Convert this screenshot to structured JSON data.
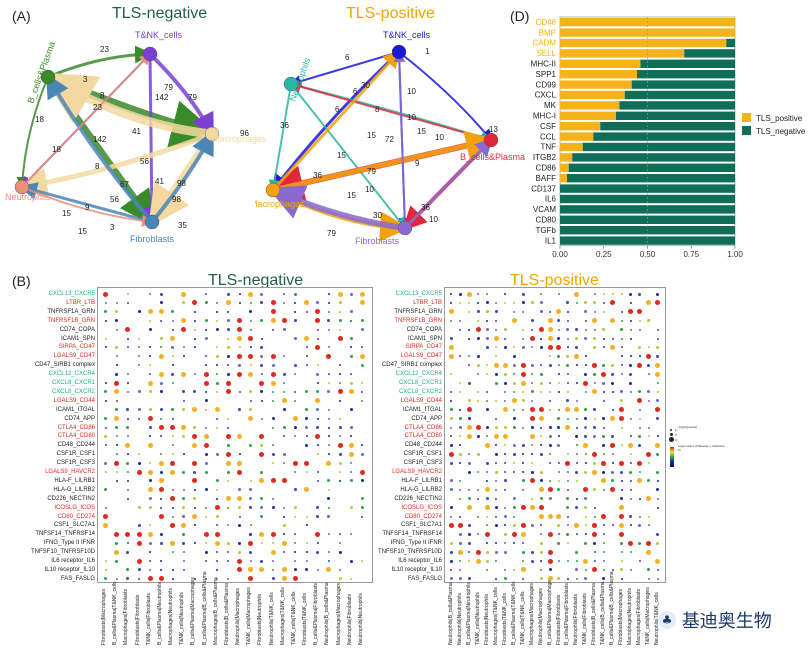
{
  "panels": {
    "a": {
      "letter": "(A)",
      "neg_title": "TLS-negative",
      "pos_title": "TLS-positive"
    },
    "b": {
      "letter": "(B)",
      "neg_title": "TLS-negative",
      "pos_title": "TLS-positive"
    },
    "d": {
      "letter": "(D)"
    }
  },
  "colors": {
    "neg_title": "#1f5f4a",
    "pos_title": "#f0a500",
    "tls_positive": "#f6b21a",
    "tls_negative": "#0f6e57",
    "lig_green": "#1fb37a",
    "lig_red": "#e0281e",
    "lig_black": "#222222"
  },
  "network_neg": {
    "nodes": [
      {
        "name": "T&NK_cells",
        "color": "#7b3fd1"
      },
      {
        "name": "B_cells&Plasma",
        "color": "#3a8a2a"
      },
      {
        "name": "Macrophages",
        "color": "#f3d9a0"
      },
      {
        "name": "Neutrophils",
        "color": "#e8907a"
      },
      {
        "name": "Fibroblasts",
        "color": "#4a86b8"
      }
    ],
    "edge_labels": [
      "23",
      "3",
      "79",
      "23",
      "8",
      "142",
      "79",
      "18",
      "142",
      "41",
      "96",
      "18",
      "56",
      "8",
      "67",
      "41",
      "98",
      "56",
      "9",
      "3",
      "15",
      "98",
      "15",
      "35"
    ]
  },
  "network_pos": {
    "nodes": [
      {
        "name": "T&NK_cells",
        "color": "#1a1ad6"
      },
      {
        "name": "Neutrophils",
        "color": "#2bb5a5"
      },
      {
        "name": "B_cells&Plasma",
        "color": "#e0283c"
      },
      {
        "name": "Macrophages",
        "color": "#f2a20f"
      },
      {
        "name": "Fibroblasts",
        "color": "#8a6ad0"
      }
    ],
    "edge_labels": [
      "6",
      "1",
      "6",
      "30",
      "6",
      "10",
      "36",
      "8",
      "15",
      "10",
      "13",
      "72",
      "79",
      "15",
      "9",
      "36",
      "10",
      "15",
      "79",
      "30",
      "36",
      "10",
      "10",
      "15"
    ]
  },
  "dot_rows_neg": [
    {
      "label": "CXCL13_CXCR5",
      "c": "green"
    },
    {
      "label": "LTBR_LTB",
      "c": "red"
    },
    {
      "label": "TNFRSF1A_GRN",
      "c": "black"
    },
    {
      "label": "TNFRSF1B_GRN",
      "c": "red"
    },
    {
      "label": "CD74_COPA",
      "c": "black"
    },
    {
      "label": "ICAM1_SPN",
      "c": "black"
    },
    {
      "label": "SIRPA_CD47",
      "c": "red"
    },
    {
      "label": "LGALS9_CD47",
      "c": "red"
    },
    {
      "label": "CD47_SIRB1 complex",
      "c": "black"
    },
    {
      "label": "CXCL12_CXCR4",
      "c": "green"
    },
    {
      "label": "CXCL8_CXCR1",
      "c": "green"
    },
    {
      "label": "CXCL8_CXCR2",
      "c": "green"
    },
    {
      "label": "LGALS9_CD44",
      "c": "red"
    },
    {
      "label": "ICAM1_ITGAL",
      "c": "black"
    },
    {
      "label": "CD74_APP",
      "c": "black"
    },
    {
      "label": "CTLA4_CD86",
      "c": "red"
    },
    {
      "label": "CTLA4_CD80",
      "c": "red"
    },
    {
      "label": "CD48_CD244",
      "c": "black"
    },
    {
      "label": "CSF1R_CSF1",
      "c": "black"
    },
    {
      "label": "CSF1R_CSF3",
      "c": "black"
    },
    {
      "label": "LGALS9_HAVCR2",
      "c": "red"
    },
    {
      "label": "HLA-F_LILRB1",
      "c": "black"
    },
    {
      "label": "HLA-G_LILRB2",
      "c": "black"
    },
    {
      "label": "CD226_NECTIN2",
      "c": "black"
    },
    {
      "label": "ICOSLG_ICOS",
      "c": "red"
    },
    {
      "label": "CD80_CD274",
      "c": "red"
    },
    {
      "label": "CSF1_SLC7A1",
      "c": "black"
    },
    {
      "label": "TNFSF14_TNFRSF14",
      "c": "black"
    },
    {
      "label": "IFNG_Type II IFNR",
      "c": "black"
    },
    {
      "label": "TNFSF10_TNFRSF10D",
      "c": "black"
    },
    {
      "label": "IL6 receptor_IL6",
      "c": "black"
    },
    {
      "label": "IL10 receptor_IL10",
      "c": "black"
    },
    {
      "label": "FAS_FASLG",
      "c": "black"
    }
  ],
  "dot_rows_pos": [
    {
      "label": "CXCL13_CXCR5",
      "c": "green"
    },
    {
      "label": "LTBR_LTB",
      "c": "red"
    },
    {
      "label": "TNFRSF1A_GRN",
      "c": "black"
    },
    {
      "label": "TNFRSF1B_GRN",
      "c": "red"
    },
    {
      "label": "CD74_COPA",
      "c": "black"
    },
    {
      "label": "ICAM1_SPN",
      "c": "black"
    },
    {
      "label": "SIRPA_CD47",
      "c": "red"
    },
    {
      "label": "LGALS9_CD47",
      "c": "red"
    },
    {
      "label": "CD47_SIRB1 complex",
      "c": "black"
    },
    {
      "label": "CXCL12_CXCR4",
      "c": "green"
    },
    {
      "label": "CXCL8_CXCR1",
      "c": "green"
    },
    {
      "label": "CXCL8_CXCR2",
      "c": "green"
    },
    {
      "label": "LGALS9_CD44",
      "c": "red"
    },
    {
      "label": "ICAM1_ITGAL",
      "c": "black"
    },
    {
      "label": "CD74_APP",
      "c": "black"
    },
    {
      "label": "CTLA4_CD86",
      "c": "red"
    },
    {
      "label": "CTLA4_CD80",
      "c": "red"
    },
    {
      "label": "CD48_CD244",
      "c": "black"
    },
    {
      "label": "CSF1R_CSF1",
      "c": "black"
    },
    {
      "label": "CSF1R_CSF3",
      "c": "black"
    },
    {
      "label": "LGALS9_HAVCR2",
      "c": "red"
    },
    {
      "label": "HLA-F_LILRB1",
      "c": "black"
    },
    {
      "label": "HLA-G_LILRB2",
      "c": "black"
    },
    {
      "label": "CD226_NECTIN2",
      "c": "black"
    },
    {
      "label": "ICOSLG_ICOS",
      "c": "red"
    },
    {
      "label": "CD80_CD274",
      "c": "red"
    },
    {
      "label": "CSF1_SLC7A1",
      "c": "black"
    },
    {
      "label": "TNFSF14_TNFRSF14",
      "c": "black"
    },
    {
      "label": "IFNG_Type II IFNR",
      "c": "black"
    },
    {
      "label": "TNFSF10_TNFRSF10D",
      "c": "black"
    },
    {
      "label": "IL6 receptor_IL6",
      "c": "black"
    },
    {
      "label": "IL10 receptor_IL10",
      "c": "black"
    },
    {
      "label": "FAS_FASLG",
      "c": "black"
    }
  ],
  "dot_cols_neg": [
    "Fibroblasts|Macrophages",
    "B_cells&Plasma|T&NK_cells",
    "Macrophages|Fibroblasts",
    "Fibroblasts|Fibroblasts",
    "T&NK_cells|Fibroblasts",
    "B_cells&Plasma|Neutrophils",
    "Macrophages|Neutrophils",
    "T&NK_cells|Neutrophils",
    "B_cells&Plasma|Macrophages",
    "B_cells&Plasma|B_cells&Plasma",
    "Macrophages|B_cells&Plasma",
    "Fibroblasts|B_cells&Plasma",
    "Neutrophils|Macrophages",
    "T&NK_cells|Macrophages",
    "Fibroblasts|Neutrophils",
    "Neutrophils|T&NK_cells",
    "Macrophages|T&NK_cells",
    "T&NK_cells|T&NK_cells",
    "Fibroblasts|T&NK_cells",
    "B_cells&Plasma|Fibroblasts",
    "Neutrophils|B_cells&Plasma",
    "Macrophages|Macrophages",
    "Neutrophils|Fibroblasts",
    "Neutrophils|Neutrophils"
  ],
  "dot_cols_pos": [
    "Neutrophils|B_cells&Plasma",
    "Neutrophils|Neutrophils",
    "B_cells&Plasma|Neutrophils",
    "T&NK_cells|Neutrophils",
    "Fibroblasts|Neutrophils",
    "Macrophages|T&NK_cells",
    "Fibroblasts|T&NK_cells",
    "B_cells&Plasma|T&NK_cells",
    "T&NK_cells|T&NK_cells",
    "Macrophages|Macrophages",
    "Neutrophils|Macrophages",
    "B_cells&Plasma|Macrophages",
    "Fibroblasts|Fibroblasts",
    "B_cells&Plasma|Fibroblasts",
    "Neutrophils|Fibroblasts",
    "T&NK_cells|Fibroblasts",
    "Fibroblasts|B_cells&Plasma",
    "T&NK_cells|B_cells&Plasma",
    "B_cells&Plasma|B_cells&Plasma",
    "Fibroblasts|Macrophages",
    "Macrophages|Neutrophils",
    "Macrophages|Fibroblasts",
    "T&NK_cells|Macrophages",
    "Neutrophils|T&NK_cells"
  ],
  "dot_legend": {
    "pval_title": "-log10(pvalue)",
    "pval_levels": [
      "1",
      "2",
      "3"
    ],
    "mean_title": "Log2 means (Molecule 1, Molecule 2)"
  },
  "chart_data": {
    "type": "bar",
    "orientation": "horizontal",
    "stacked": true,
    "categories": [
      "CD46",
      "BMP",
      "CADM",
      "SELL",
      "MHC-II",
      "SPP1",
      "CD99",
      "CXCL",
      "MK",
      "MHC-I",
      "CSF",
      "CCL",
      "TNF",
      "ITGB2",
      "CD86",
      "BAFF",
      "CD137",
      "IL6",
      "VCAM",
      "CD80",
      "TGFb",
      "IL1"
    ],
    "category_colors": [
      "#f6b21a",
      "#f6b21a",
      "#f6b21a",
      "#f6b21a",
      "#222",
      "#222",
      "#222",
      "#222",
      "#222",
      "#222",
      "#222",
      "#222",
      "#222",
      "#222",
      "#222",
      "#222",
      "#222",
      "#222",
      "#222",
      "#222",
      "#222",
      "#222"
    ],
    "series": [
      {
        "name": "TLS_positive",
        "values": [
          1.0,
          1.0,
          0.95,
          0.71,
          0.46,
          0.44,
          0.41,
          0.37,
          0.34,
          0.32,
          0.23,
          0.19,
          0.13,
          0.07,
          0.05,
          0.04,
          0,
          0,
          0,
          0,
          0,
          0
        ]
      },
      {
        "name": "TLS_negative",
        "values": [
          0,
          0,
          0.05,
          0.29,
          0.54,
          0.56,
          0.59,
          0.63,
          0.66,
          0.68,
          0.77,
          0.81,
          0.87,
          0.93,
          0.95,
          0.96,
          1,
          1,
          1,
          1,
          1,
          1
        ]
      }
    ],
    "xticks": [
      "0.00",
      "0.25",
      "0.50",
      "0.75",
      "1.00"
    ],
    "xlim": [
      0,
      1
    ],
    "reference_line": 0.5,
    "legend_position": "right"
  },
  "watermark": "基迪奥生物"
}
